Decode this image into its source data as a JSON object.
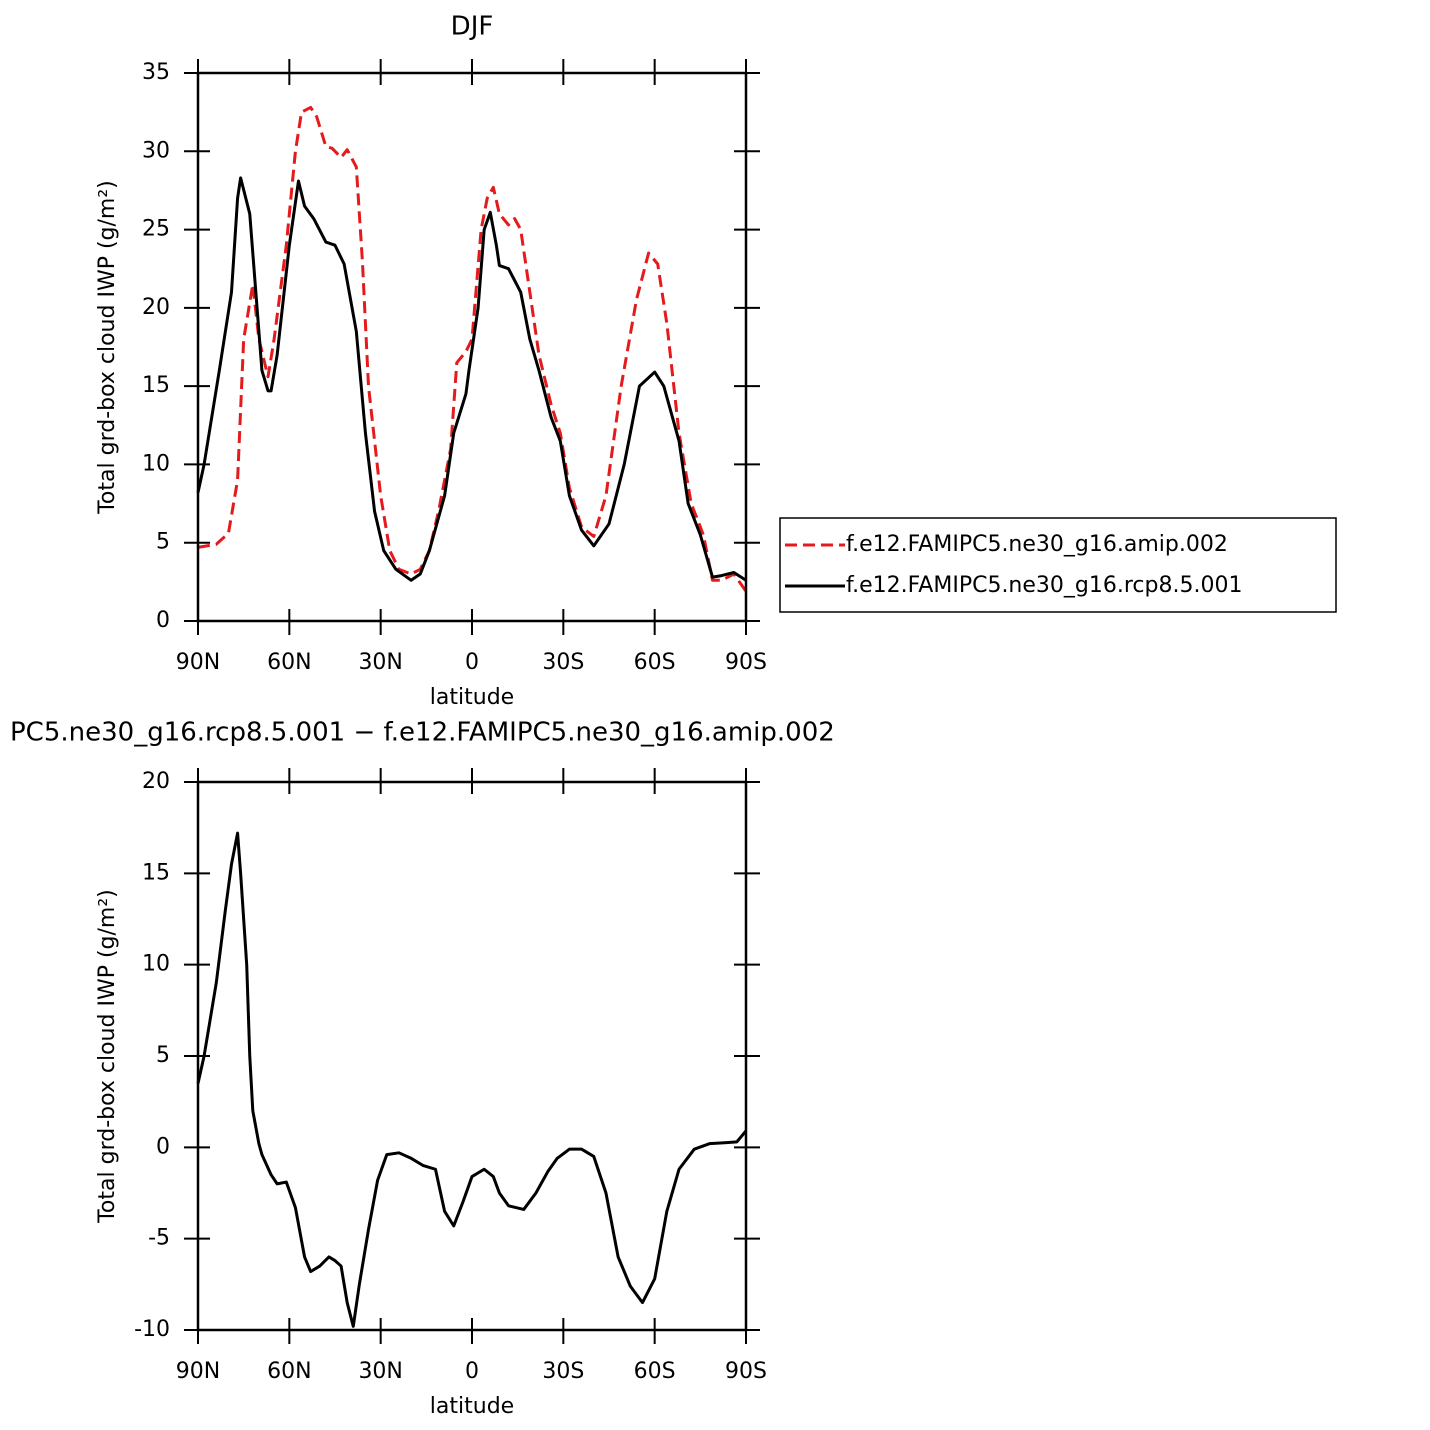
{
  "chart_data": [
    {
      "type": "line",
      "title": "DJF",
      "xlabel": "latitude",
      "ylabel": "Total grd-box cloud IWP (g/m²)",
      "xlim": [
        90,
        -90
      ],
      "xticks": [
        {
          "value": 90,
          "label": "90N"
        },
        {
          "value": 60,
          "label": "60N"
        },
        {
          "value": 30,
          "label": "30N"
        },
        0,
        {
          "value": -30,
          "label": "30S"
        },
        {
          "value": -60,
          "label": "60S"
        },
        {
          "value": -90,
          "label": "90S"
        }
      ],
      "ylim": [
        0,
        35
      ],
      "yticks": [
        0,
        5,
        10,
        15,
        20,
        25,
        30,
        35
      ],
      "legend": "right",
      "series": [
        {
          "name": "f.e12.FAMIPC5.ne30_g16.amip.002",
          "color": "#e41a1c",
          "dash": true,
          "x": [
            90,
            84,
            80,
            77,
            75,
            72,
            70,
            67,
            65,
            61,
            58,
            56,
            53,
            51,
            48,
            46,
            43,
            41,
            38,
            36,
            34,
            30,
            27,
            24,
            20,
            17,
            14,
            11,
            7,
            5,
            2,
            0,
            -3,
            -5,
            -7,
            -9,
            -12,
            -14,
            -16,
            -19,
            -22,
            -26,
            -29,
            -32,
            -36,
            -40,
            -44,
            -49,
            -54,
            -58,
            -61,
            -64,
            -68,
            -72,
            -76,
            -79,
            -82,
            -86,
            -90
          ],
          "values": [
            4.7,
            4.9,
            5.6,
            9,
            18,
            21.5,
            18,
            15.6,
            18,
            24,
            30,
            32.5,
            32.8,
            32.2,
            30.3,
            30.2,
            29.6,
            30.1,
            29,
            23,
            15,
            8,
            4.5,
            3.3,
            3,
            3.3,
            4.5,
            7,
            11,
            16.5,
            17.2,
            18,
            25,
            27,
            27.7,
            26,
            25.3,
            25.7,
            25,
            21,
            17,
            13.8,
            12,
            8.5,
            6,
            5.4,
            8,
            15,
            20.5,
            23.5,
            22.8,
            19,
            12,
            7.5,
            5.5,
            2.6,
            2.6,
            3,
            1.9
          ]
        },
        {
          "name": "f.e12.FAMIPC5.ne30_g16.rcp8.5.001",
          "color": "#000000",
          "dash": false,
          "x": [
            90,
            88,
            83,
            79,
            77,
            76,
            73,
            71,
            69,
            67,
            66,
            64,
            60,
            57,
            55,
            52,
            48,
            45,
            42,
            38,
            35,
            32,
            29,
            25,
            20,
            17,
            14,
            9,
            6,
            2,
            1,
            -2,
            -4,
            -6,
            -8,
            -9,
            -12,
            -16,
            -19,
            -22,
            -26,
            -29,
            -32,
            -36,
            -40,
            -45,
            -50,
            -55,
            -60,
            -63,
            -68,
            -71,
            -75,
            -79,
            -82,
            -86,
            -90
          ],
          "values": [
            8.2,
            10,
            16,
            21,
            27,
            28.3,
            26,
            21,
            16,
            14.7,
            14.7,
            17,
            24,
            28.1,
            26.5,
            25.7,
            24.2,
            24,
            22.8,
            18.5,
            12,
            7,
            4.5,
            3.3,
            2.6,
            3,
            4.5,
            8,
            12,
            14.5,
            16,
            20,
            25,
            26.1,
            24,
            22.7,
            22.5,
            21,
            18,
            16,
            13,
            11.5,
            8,
            5.8,
            4.8,
            6.2,
            10,
            15,
            15.9,
            15,
            11.5,
            7.5,
            5.5,
            2.8,
            2.9,
            3.1,
            2.6
          ]
        }
      ]
    },
    {
      "type": "line",
      "title": "PC5.ne30_g16.rcp8.5.001 − f.e12.FAMIPC5.ne30_g16.amip.002",
      "xlabel": "latitude",
      "ylabel": "Total grd-box cloud IWP (g/m²)",
      "xlim": [
        90,
        -90
      ],
      "xticks": [
        {
          "value": 90,
          "label": "90N"
        },
        {
          "value": 60,
          "label": "60N"
        },
        {
          "value": 30,
          "label": "30N"
        },
        0,
        {
          "value": -30,
          "label": "30S"
        },
        {
          "value": -60,
          "label": "60S"
        },
        {
          "value": -90,
          "label": "90S"
        }
      ],
      "ylim": [
        -10,
        20
      ],
      "yticks": [
        -10,
        -5,
        0,
        5,
        10,
        15,
        20
      ],
      "series": [
        {
          "color": "#000000",
          "dash": false,
          "x": [
            90,
            88,
            84,
            81,
            79,
            77,
            76,
            74,
            73,
            72,
            70,
            69,
            66,
            64,
            61,
            58,
            55,
            53,
            50,
            47,
            45,
            43,
            41,
            39,
            37,
            34,
            31,
            28,
            24,
            20,
            16,
            12,
            9,
            6,
            3,
            0,
            -4,
            -7,
            -9,
            -12,
            -17,
            -21,
            -25,
            -28,
            -32,
            -36,
            -40,
            -44,
            -48,
            -52,
            -56,
            -60,
            -64,
            -68,
            -73,
            -78,
            -83,
            -87,
            -90
          ],
          "values": [
            3.5,
            5,
            9,
            13,
            15.5,
            17.2,
            15,
            10,
            5,
            2,
            0.2,
            -0.4,
            -1.5,
            -2,
            -1.9,
            -3.3,
            -6,
            -6.8,
            -6.5,
            -6,
            -6.2,
            -6.5,
            -8.5,
            -9.8,
            -7.5,
            -4.5,
            -1.8,
            -0.4,
            -0.3,
            -0.6,
            -1,
            -1.2,
            -3.5,
            -4.3,
            -3,
            -1.6,
            -1.2,
            -1.6,
            -2.5,
            -3.2,
            -3.4,
            -2.5,
            -1.3,
            -0.6,
            -0.1,
            -0.1,
            -0.5,
            -2.5,
            -6,
            -7.6,
            -8.5,
            -7.2,
            -3.5,
            -1.2,
            -0.1,
            0.2,
            0.25,
            0.3,
            0.9
          ]
        }
      ]
    }
  ]
}
